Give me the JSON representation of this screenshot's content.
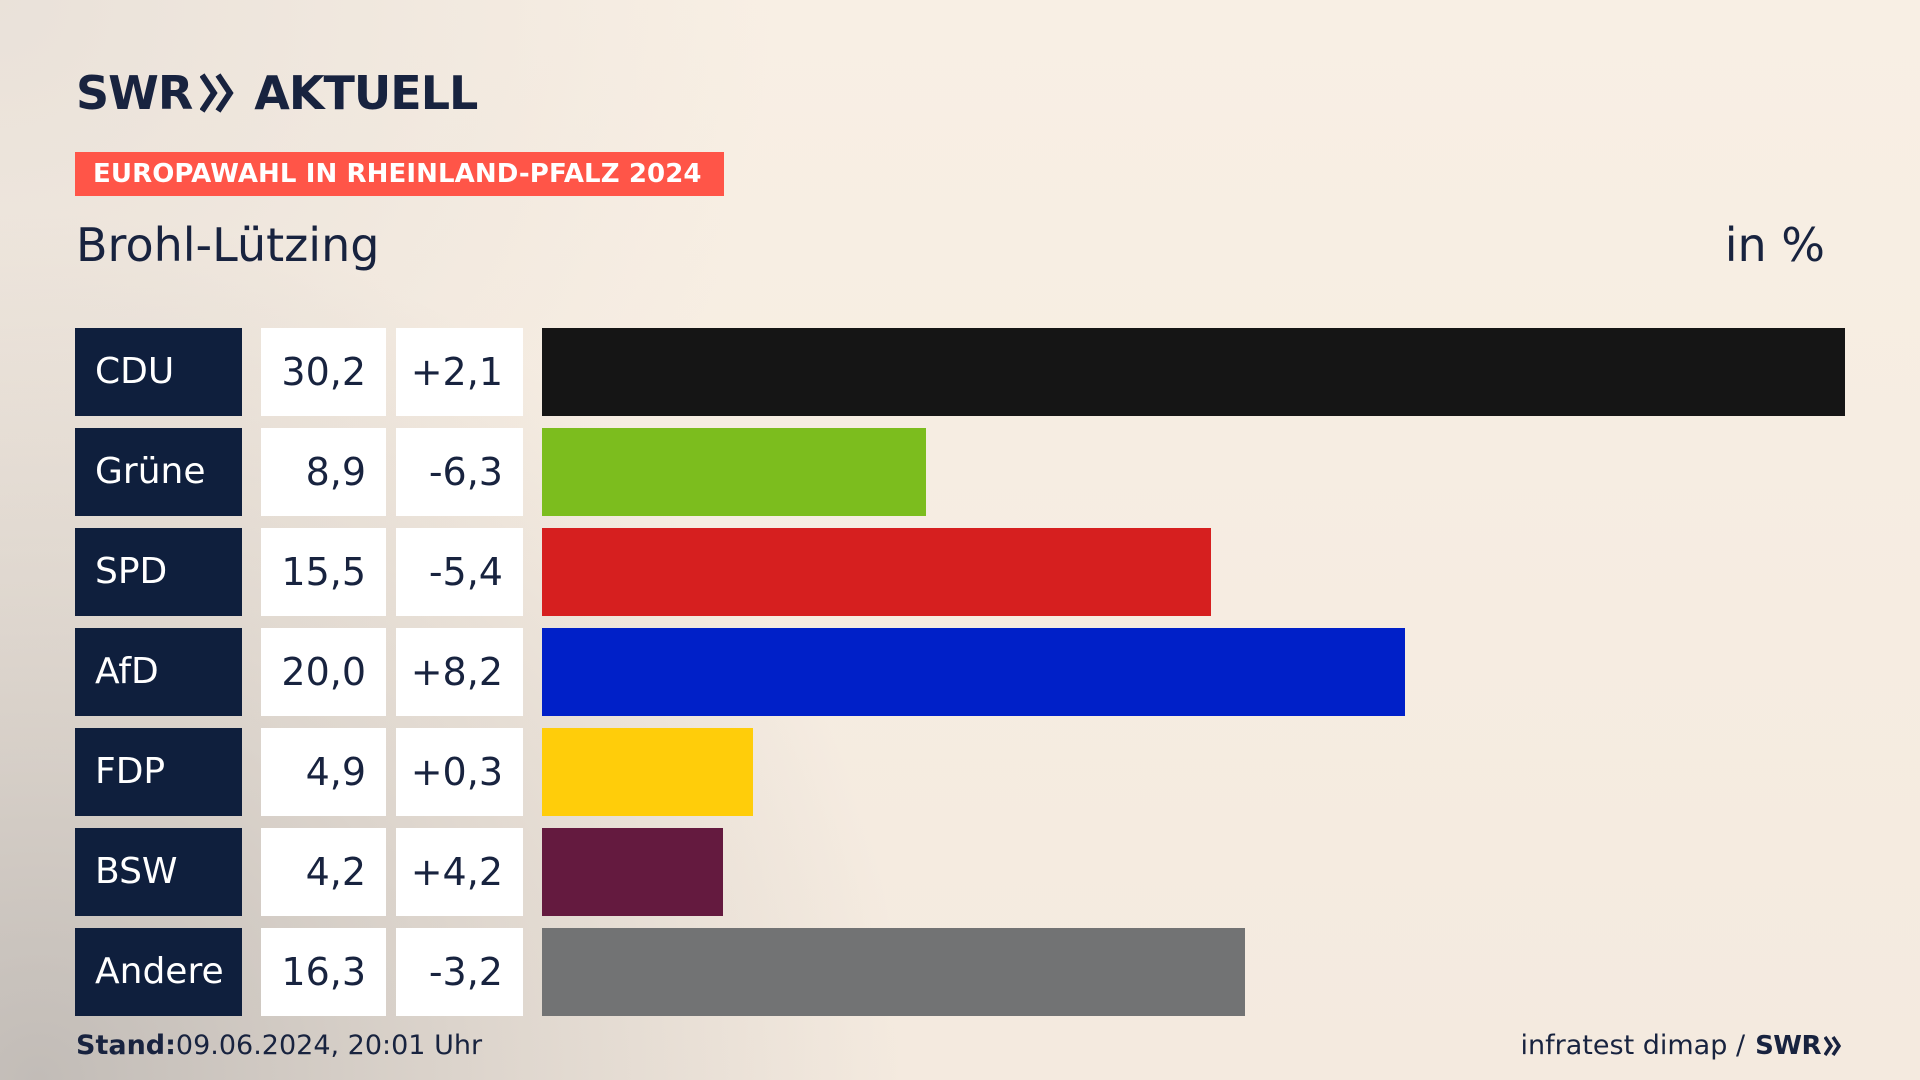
{
  "header": {
    "brand": "SWR",
    "section": "AKTUELL",
    "banner": "EUROPAWAHL IN RHEINLAND-PFALZ 2024",
    "region": "Brohl-Lützing",
    "unit": "in %"
  },
  "footer": {
    "stand_label": "Stand:",
    "stand_value": "09.06.2024, 20:01 Uhr",
    "source": "infratest dimap /",
    "brand": "SWR"
  },
  "icons": {
    "logo_arrow": "double-chevron-right-icon",
    "footer_arrow": "double-chevron-right-icon"
  },
  "colors": {
    "banner": "#ff5548",
    "label_bg": "#0f1f3d",
    "text": "#18233f"
  },
  "chart_data": {
    "type": "bar",
    "orientation": "horizontal",
    "categories": [
      "CDU",
      "Grüne",
      "SPD",
      "AfD",
      "FDP",
      "BSW",
      "Andere"
    ],
    "values": [
      30.2,
      8.9,
      15.5,
      20.0,
      4.9,
      4.2,
      16.3
    ],
    "display_values": [
      "30,2",
      "8,9",
      "15,5",
      "20,0",
      "4,9",
      "4,2",
      "16,3"
    ],
    "changes": [
      "+2,1",
      "-6,3",
      "-5,4",
      "+8,2",
      "+0,3",
      "+4,2",
      "-3,2"
    ],
    "colors": [
      "#151515",
      "#7cbd1e",
      "#d61f1f",
      "#0020c8",
      "#ffcd0a",
      "#641a3f",
      "#727374"
    ],
    "xlim": [
      0,
      30.2
    ]
  }
}
